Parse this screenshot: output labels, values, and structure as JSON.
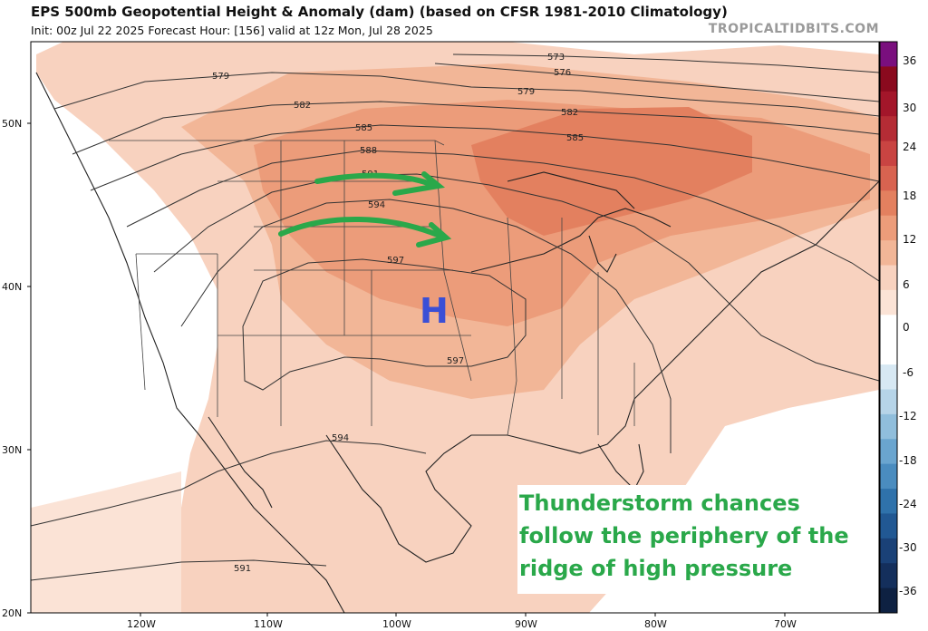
{
  "header": {
    "title": "EPS 500mb Geopotential Height & Anomaly (dam) (based on CFSR 1981-2010 Climatology)",
    "subtitle": "Init: 00z Jul 22 2025   Forecast Hour: [156]   valid at 12z Mon, Jul 28 2025",
    "site": "TROPICALTIDBITS.COM"
  },
  "axes": {
    "lat_labels": [
      "50N",
      "40N",
      "30N",
      "20N"
    ],
    "lon_labels": [
      "120W",
      "110W",
      "100W",
      "90W",
      "80W",
      "70W"
    ]
  },
  "contour_labels": [
    "573",
    "576",
    "579",
    "579",
    "582",
    "582",
    "585",
    "585",
    "588",
    "591",
    "594",
    "597",
    "597",
    "594",
    "591"
  ],
  "colorbar": {
    "ticks": [
      "36",
      "30",
      "24",
      "18",
      "12",
      "6",
      "0",
      "-6",
      "-12",
      "-18",
      "-24",
      "-30",
      "-36"
    ],
    "colors": [
      "#7a0f7e",
      "#8a0a1e",
      "#a3162a",
      "#b52c35",
      "#c94442",
      "#d86350",
      "#e3805f",
      "#ec9c7a",
      "#f2b697",
      "#f8d2bf",
      "#fbe3d6",
      "#ffffff",
      "#ffffff",
      "#d7e8f3",
      "#b6d4e8",
      "#90bedc",
      "#6aa5cf",
      "#4a8cbf",
      "#2f72ab",
      "#215893",
      "#1a4177",
      "#142f5c",
      "#0e2142"
    ]
  },
  "marker": {
    "label": "H",
    "color": "#3a4fd6"
  },
  "annotation": {
    "lines": [
      "Thunderstorm chances",
      "follow the periphery of the",
      "ridge of high pressure"
    ],
    "color": "#2aa84a"
  },
  "arrows_color": "#2aa84a"
}
